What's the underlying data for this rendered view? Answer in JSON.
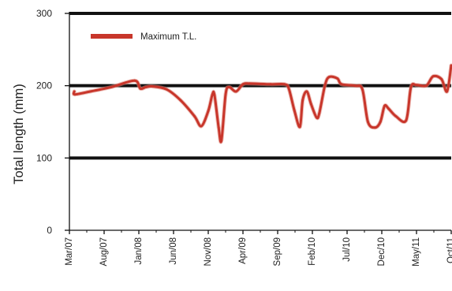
{
  "chart_data": {
    "type": "line",
    "ylabel": "Total length (mm)",
    "xlabel": "",
    "ylim": [
      0,
      300
    ],
    "yticks": [
      0,
      100,
      200,
      300
    ],
    "xlim": [
      0,
      55
    ],
    "xtick_labels": [
      "Mar/07",
      "Aug/07",
      "Jan/08",
      "Jun/08",
      "Nov/08",
      "Apr/09",
      "Sep/09",
      "Feb/10",
      "Jul/10",
      "Dec/10",
      "May/11",
      "Oct/11"
    ],
    "gridlines": [
      100,
      200,
      300
    ],
    "legend_position": "top-left",
    "colors": {
      "series": "#c8362b",
      "axis": "#111111"
    },
    "series": [
      {
        "name": "Maximum T.L.",
        "points": [
          [
            0.7,
            192
          ],
          [
            0.8,
            188
          ],
          [
            3,
            192
          ],
          [
            6,
            198
          ],
          [
            9.4,
            207
          ],
          [
            10.2,
            196
          ],
          [
            11,
            198
          ],
          [
            12,
            199
          ],
          [
            14,
            195
          ],
          [
            16,
            180
          ],
          [
            18,
            158
          ],
          [
            19,
            144
          ],
          [
            20,
            165
          ],
          [
            20.6,
            188
          ],
          [
            20.9,
            187
          ],
          [
            21.5,
            142
          ],
          [
            21.9,
            124
          ],
          [
            22.5,
            188
          ],
          [
            23,
            198
          ],
          [
            24,
            192
          ],
          [
            25,
            202
          ],
          [
            26,
            203
          ],
          [
            29,
            202
          ],
          [
            31,
            202
          ],
          [
            31.6,
            196
          ],
          [
            32.4,
            166
          ],
          [
            33.2,
            143
          ],
          [
            33.6,
            180
          ],
          [
            34.2,
            192
          ],
          [
            34.8,
            175
          ],
          [
            35.6,
            156
          ],
          [
            36,
            162
          ],
          [
            36.8,
            200
          ],
          [
            37.4,
            212
          ],
          [
            38.6,
            210
          ],
          [
            39.2,
            202
          ],
          [
            41.2,
            200
          ],
          [
            42.2,
            195
          ],
          [
            43,
            150
          ],
          [
            44,
            142
          ],
          [
            44.8,
            150
          ],
          [
            45.4,
            172
          ],
          [
            46,
            168
          ],
          [
            47,
            158
          ],
          [
            48.5,
            152
          ],
          [
            49.2,
            198
          ],
          [
            50,
            201
          ],
          [
            51.4,
            200
          ],
          [
            52.4,
            213
          ],
          [
            53.6,
            209
          ],
          [
            54.4,
            192
          ],
          [
            55,
            228
          ]
        ]
      }
    ]
  }
}
